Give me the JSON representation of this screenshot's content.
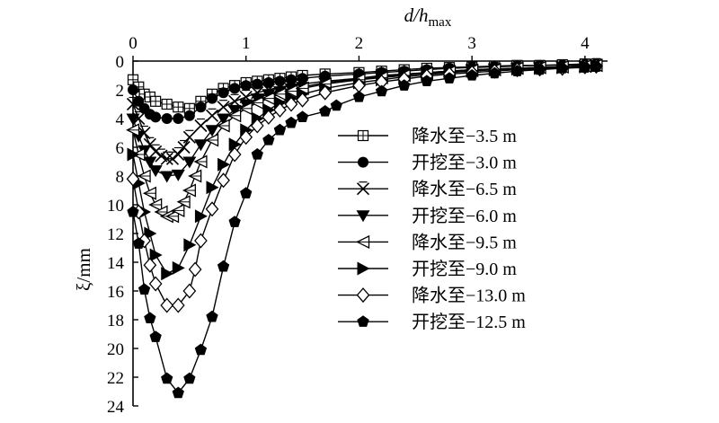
{
  "chart_data": {
    "type": "line",
    "xlabel": "d/h_max",
    "xlabel_parts": {
      "main": "d/h",
      "sub": "max"
    },
    "ylabel": "ξ/mm",
    "xlim": [
      0,
      4.2
    ],
    "ylim": [
      24,
      0
    ],
    "x_ticks": [
      0,
      1,
      2,
      3,
      4
    ],
    "y_ticks": [
      0,
      2,
      4,
      6,
      8,
      10,
      12,
      14,
      16,
      18,
      20,
      22,
      24
    ],
    "x_axis_position": "top",
    "y_axis_inverted": true,
    "grid": false,
    "legend_position": "right",
    "series": [
      {
        "name": "降水至−3.5 m",
        "marker": "square-cross",
        "x": [
          0.0,
          0.05,
          0.1,
          0.15,
          0.2,
          0.3,
          0.4,
          0.5,
          0.6,
          0.7,
          0.8,
          0.9,
          1.0,
          1.1,
          1.2,
          1.3,
          1.4,
          1.5,
          1.7,
          2.0,
          2.2,
          2.4,
          2.6,
          2.8,
          3.0,
          3.2,
          3.4,
          3.6,
          3.8,
          4.0,
          4.1
        ],
        "y": [
          1.3,
          1.8,
          2.3,
          2.5,
          2.8,
          3.0,
          3.2,
          3.3,
          2.8,
          2.3,
          1.9,
          1.7,
          1.5,
          1.4,
          1.3,
          1.2,
          1.1,
          1.0,
          0.9,
          0.8,
          0.7,
          0.6,
          0.5,
          0.45,
          0.4,
          0.35,
          0.3,
          0.3,
          0.25,
          0.2,
          0.2
        ]
      },
      {
        "name": "开挖至−3.0 m",
        "marker": "circle-filled",
        "x": [
          0.0,
          0.05,
          0.1,
          0.15,
          0.2,
          0.3,
          0.4,
          0.5,
          0.6,
          0.7,
          0.8,
          0.9,
          1.0,
          1.1,
          1.2,
          1.3,
          1.4,
          1.5,
          1.7,
          2.0,
          2.2,
          2.4,
          2.6,
          2.8,
          3.0,
          3.2,
          3.4,
          3.6,
          3.8,
          4.0,
          4.1
        ],
        "y": [
          2.0,
          2.8,
          3.3,
          3.7,
          3.9,
          4.0,
          4.0,
          3.8,
          3.2,
          2.6,
          2.2,
          1.9,
          1.7,
          1.6,
          1.5,
          1.4,
          1.3,
          1.2,
          1.05,
          0.9,
          0.8,
          0.7,
          0.6,
          0.5,
          0.45,
          0.4,
          0.35,
          0.3,
          0.3,
          0.25,
          0.2
        ]
      },
      {
        "name": "降水至−6.5 m",
        "marker": "x-cross",
        "x": [
          0.0,
          0.05,
          0.1,
          0.15,
          0.2,
          0.25,
          0.3,
          0.35,
          0.4,
          0.45,
          0.5,
          0.6,
          0.7,
          0.8,
          0.9,
          1.0,
          1.1,
          1.2,
          1.3,
          1.4,
          1.5,
          1.7,
          2.0,
          2.2,
          2.4,
          2.6,
          2.8,
          3.0,
          3.2,
          3.4,
          3.6,
          3.8,
          4.0,
          4.1
        ],
        "y": [
          3.0,
          4.0,
          5.0,
          5.8,
          6.3,
          6.6,
          6.8,
          6.8,
          6.5,
          6.0,
          5.3,
          4.5,
          3.8,
          3.2,
          2.8,
          2.5,
          2.2,
          2.0,
          1.8,
          1.7,
          1.6,
          1.4,
          1.2,
          1.0,
          0.9,
          0.8,
          0.7,
          0.6,
          0.55,
          0.5,
          0.45,
          0.4,
          0.35,
          0.3
        ]
      },
      {
        "name": "开挖至−6.0 m",
        "marker": "triangle-down",
        "x": [
          0.0,
          0.05,
          0.1,
          0.15,
          0.2,
          0.3,
          0.4,
          0.5,
          0.6,
          0.7,
          0.8,
          0.9,
          1.0,
          1.1,
          1.2,
          1.3,
          1.4,
          1.5,
          1.7,
          2.0,
          2.2,
          2.4,
          2.6,
          2.8,
          3.0,
          3.2,
          3.4,
          3.6,
          3.8,
          4.0,
          4.1
        ],
        "y": [
          4.0,
          5.2,
          6.2,
          7.0,
          7.6,
          8.0,
          7.9,
          7.0,
          5.8,
          4.8,
          4.0,
          3.4,
          3.0,
          2.6,
          2.3,
          2.1,
          1.9,
          1.8,
          1.5,
          1.25,
          1.1,
          0.95,
          0.8,
          0.7,
          0.6,
          0.55,
          0.5,
          0.45,
          0.4,
          0.35,
          0.3
        ]
      },
      {
        "name": "降水至−9.5 m",
        "marker": "triangle-left",
        "x": [
          0.0,
          0.05,
          0.1,
          0.15,
          0.2,
          0.25,
          0.3,
          0.35,
          0.4,
          0.45,
          0.5,
          0.55,
          0.6,
          0.7,
          0.8,
          0.9,
          1.0,
          1.1,
          1.2,
          1.3,
          1.4,
          1.5,
          1.7,
          2.0,
          2.2,
          2.4,
          2.6,
          2.8,
          3.0,
          3.2,
          3.4,
          3.6,
          3.8,
          4.0,
          4.1
        ],
        "y": [
          4.8,
          6.5,
          8.0,
          9.2,
          10.0,
          10.5,
          10.8,
          10.8,
          10.4,
          9.8,
          9.0,
          8.0,
          7.0,
          5.5,
          4.5,
          3.8,
          3.3,
          2.9,
          2.6,
          2.3,
          2.1,
          1.9,
          1.6,
          1.3,
          1.15,
          1.0,
          0.85,
          0.75,
          0.65,
          0.6,
          0.5,
          0.45,
          0.4,
          0.35,
          0.3
        ]
      },
      {
        "name": "开挖至−9.0 m",
        "marker": "triangle-right",
        "x": [
          0.0,
          0.05,
          0.1,
          0.15,
          0.2,
          0.3,
          0.4,
          0.5,
          0.6,
          0.7,
          0.8,
          0.9,
          1.0,
          1.1,
          1.2,
          1.3,
          1.4,
          1.5,
          1.7,
          2.0,
          2.2,
          2.4,
          2.6,
          2.8,
          3.0,
          3.2,
          3.4,
          3.6,
          3.8,
          4.0,
          4.1
        ],
        "y": [
          6.5,
          8.5,
          10.5,
          12.0,
          13.5,
          14.8,
          14.4,
          12.8,
          10.8,
          8.8,
          7.2,
          5.8,
          4.8,
          4.0,
          3.4,
          2.9,
          2.6,
          2.3,
          1.9,
          1.5,
          1.3,
          1.1,
          0.95,
          0.8,
          0.7,
          0.6,
          0.55,
          0.5,
          0.45,
          0.4,
          0.35
        ]
      },
      {
        "name": "降水至−13.0 m",
        "marker": "diamond-open",
        "x": [
          0.0,
          0.05,
          0.1,
          0.15,
          0.2,
          0.3,
          0.4,
          0.5,
          0.55,
          0.6,
          0.7,
          0.8,
          0.9,
          1.0,
          1.1,
          1.2,
          1.3,
          1.4,
          1.5,
          1.7,
          2.0,
          2.2,
          2.4,
          2.6,
          2.8,
          3.0,
          3.2,
          3.4,
          3.6,
          3.8,
          4.0,
          4.1
        ],
        "y": [
          8.2,
          10.5,
          12.5,
          14.2,
          15.5,
          17.0,
          17.0,
          16.0,
          14.5,
          12.5,
          10.3,
          8.3,
          6.5,
          5.3,
          4.5,
          3.9,
          3.4,
          3.0,
          2.7,
          2.2,
          1.7,
          1.45,
          1.25,
          1.05,
          0.9,
          0.8,
          0.7,
          0.6,
          0.55,
          0.5,
          0.4,
          0.35
        ]
      },
      {
        "name": "开挖至−12.5 m",
        "marker": "pentagon-filled",
        "x": [
          0.0,
          0.05,
          0.1,
          0.15,
          0.2,
          0.3,
          0.4,
          0.5,
          0.6,
          0.7,
          0.8,
          0.9,
          1.0,
          1.1,
          1.2,
          1.3,
          1.4,
          1.5,
          1.7,
          1.8,
          2.0,
          2.2,
          2.4,
          2.6,
          2.8,
          3.0,
          3.2,
          3.4,
          3.6,
          3.8,
          4.0,
          4.1
        ],
        "y": [
          10.5,
          12.7,
          15.9,
          17.9,
          19.2,
          22.1,
          23.1,
          22.1,
          20.1,
          17.8,
          14.3,
          11.2,
          9.2,
          6.5,
          5.5,
          4.8,
          4.3,
          3.9,
          3.5,
          3.1,
          2.5,
          2.1,
          1.7,
          1.4,
          1.2,
          1.0,
          0.85,
          0.7,
          0.6,
          0.5,
          0.45,
          0.4
        ]
      }
    ]
  }
}
